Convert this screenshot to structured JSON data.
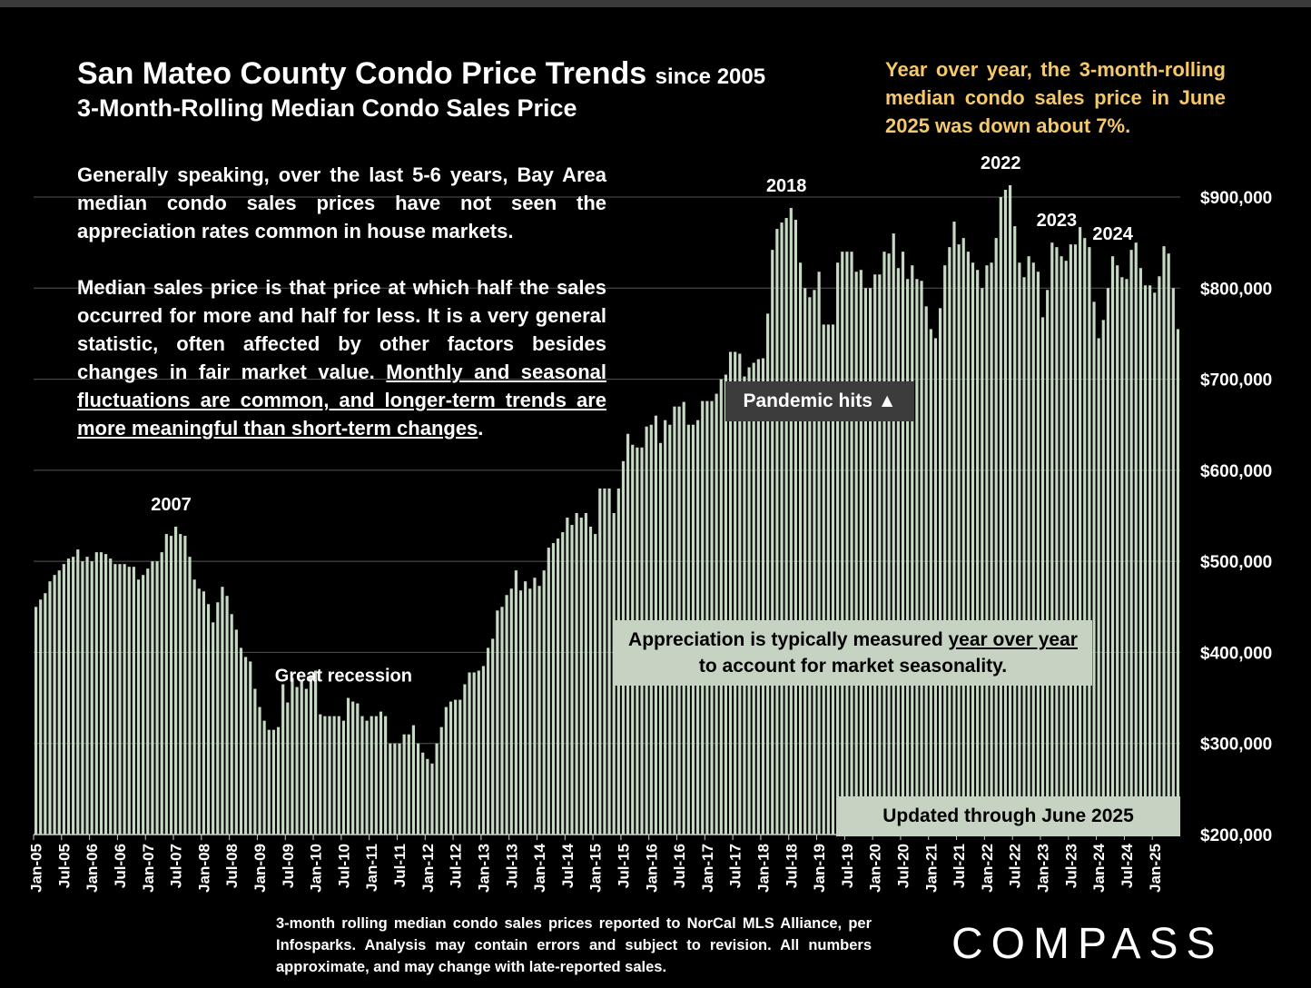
{
  "header": {
    "title": "San Mateo County Condo Price Trends",
    "title_suffix": "since 2005",
    "subtitle": "3-Month-Rolling Median Condo Sales Price",
    "yoy_note": "Year over year, the 3-month-rolling median condo sales price in June 2025 was down about 7%."
  },
  "text": {
    "para1": "Generally speaking, over the last 5-6 years, Bay Area median condo sales prices have not seen the appreciation rates common in house markets.",
    "para2_plain": "Median sales price is that price at which half the sales occurred for more and half for less. It is a very general statistic, often affected by other factors besides changes in fair market value.",
    "para2_underlined": "Monthly and seasonal fluctuations are common, and longer-term trends are more meaningful than short-term changes",
    "para2_end": "."
  },
  "callouts": {
    "pandemic": "Pandemic hits ▲",
    "appreciation_plain": "Appreciation is typically measured",
    "appreciation_underlined": "year over year",
    "appreciation_line2": "to account for market seasonality.",
    "updated": "Updated through June 2025"
  },
  "footnote": "3-month rolling median condo sales prices reported to NorCal MLS Alliance, per Infosparks. Analysis may contain errors and subject to revision. All numbers approximate, and may change with late-reported sales.",
  "brand": {
    "logo": "COMPASS"
  },
  "colors": {
    "background": "#000000",
    "bar": "#c6d9c3",
    "highlight": "#f5c869",
    "grid": "#555555"
  },
  "chart_data": {
    "type": "bar",
    "start_month": "Jan-05",
    "end_month": "Jun-25",
    "ylim": [
      200000,
      900000
    ],
    "yticks": [
      "$200,000",
      "$300,000",
      "$400,000",
      "$500,000",
      "$600,000",
      "$700,000",
      "$800,000",
      "$900,000"
    ],
    "ytick_values": [
      200000,
      300000,
      400000,
      500000,
      600000,
      700000,
      800000,
      900000
    ],
    "xtick_labels": [
      "Jan-05",
      "Jul-05",
      "Jan-06",
      "Jul-06",
      "Jan-07",
      "Jul-07",
      "Jan-08",
      "Jul-08",
      "Jan-09",
      "Jul-09",
      "Jan-10",
      "Jul-10",
      "Jan-11",
      "Jul-11",
      "Jan-12",
      "Jul-12",
      "Jan-13",
      "Jul-13",
      "Jan-14",
      "Jul-14",
      "Jan-15",
      "Jul-15",
      "Jan-16",
      "Jul-16",
      "Jan-17",
      "Jul-17",
      "Jan-18",
      "Jul-18",
      "Jan-19",
      "Jul-19",
      "Jan-20",
      "Jul-20",
      "Jan-21",
      "Jul-21",
      "Jan-22",
      "Jul-22",
      "Jan-23",
      "Jul-23",
      "Jan-24",
      "Jul-24",
      "Jan-25"
    ],
    "annotations": [
      {
        "label": "2007",
        "month": "Jun-07"
      },
      {
        "label": "Great recession",
        "month": "Jul-10"
      },
      {
        "label": "2018",
        "month": "Jun-18"
      },
      {
        "label": "2022",
        "month": "Apr-22"
      },
      {
        "label": "2023",
        "month": "Apr-23"
      },
      {
        "label": "2024",
        "month": "Apr-24"
      }
    ],
    "values": [
      450000,
      458000,
      465000,
      478000,
      485000,
      490000,
      497000,
      503000,
      505000,
      513000,
      500000,
      505000,
      500000,
      510000,
      510000,
      508000,
      503000,
      497000,
      497000,
      497000,
      494000,
      494000,
      480000,
      485000,
      492000,
      500000,
      500000,
      510000,
      530000,
      528000,
      538000,
      530000,
      528000,
      505000,
      480000,
      470000,
      467000,
      453000,
      433000,
      455000,
      472000,
      462000,
      442000,
      425000,
      405000,
      395000,
      390000,
      360000,
      340000,
      325000,
      315000,
      315000,
      318000,
      365000,
      345000,
      372000,
      362000,
      370000,
      360000,
      375000,
      380000,
      332000,
      330000,
      330000,
      330000,
      330000,
      325000,
      350000,
      346000,
      344000,
      330000,
      325000,
      330000,
      330000,
      335000,
      330000,
      300000,
      300000,
      300000,
      310000,
      310000,
      320000,
      300000,
      290000,
      283000,
      278000,
      300000,
      318000,
      340000,
      346000,
      348000,
      348000,
      365000,
      378000,
      378000,
      380000,
      385000,
      405000,
      415000,
      446000,
      450000,
      463000,
      470000,
      490000,
      468000,
      478000,
      470000,
      482000,
      473000,
      490000,
      515000,
      520000,
      525000,
      532000,
      548000,
      540000,
      553000,
      548000,
      553000,
      538000,
      530000,
      580000,
      580000,
      580000,
      553000,
      580000,
      610000,
      640000,
      628000,
      625000,
      625000,
      648000,
      650000,
      660000,
      630000,
      655000,
      650000,
      670000,
      670000,
      675000,
      650000,
      650000,
      655000,
      676000,
      676000,
      676000,
      684000,
      700000,
      705000,
      730000,
      730000,
      728000,
      703000,
      713000,
      718000,
      722000,
      723000,
      772000,
      842000,
      865000,
      872000,
      877000,
      888000,
      875000,
      828000,
      800000,
      790000,
      798000,
      818000,
      760000,
      760000,
      760000,
      828000,
      840000,
      840000,
      840000,
      818000,
      820000,
      800000,
      800000,
      815000,
      815000,
      840000,
      838000,
      860000,
      822000,
      840000,
      810000,
      825000,
      810000,
      808000,
      780000,
      755000,
      745000,
      778000,
      825000,
      845000,
      873000,
      848000,
      855000,
      840000,
      828000,
      820000,
      800000,
      825000,
      828000,
      855000,
      900000,
      908000,
      913000,
      868000,
      828000,
      812000,
      835000,
      828000,
      818000,
      768000,
      798000,
      850000,
      845000,
      835000,
      830000,
      848000,
      848000,
      867000,
      855000,
      845000,
      785000,
      745000,
      765000,
      800000,
      835000,
      825000,
      812000,
      810000,
      842000,
      850000,
      822000,
      803000,
      803000,
      795000,
      813000,
      846000,
      838000,
      800000,
      755000
    ]
  }
}
